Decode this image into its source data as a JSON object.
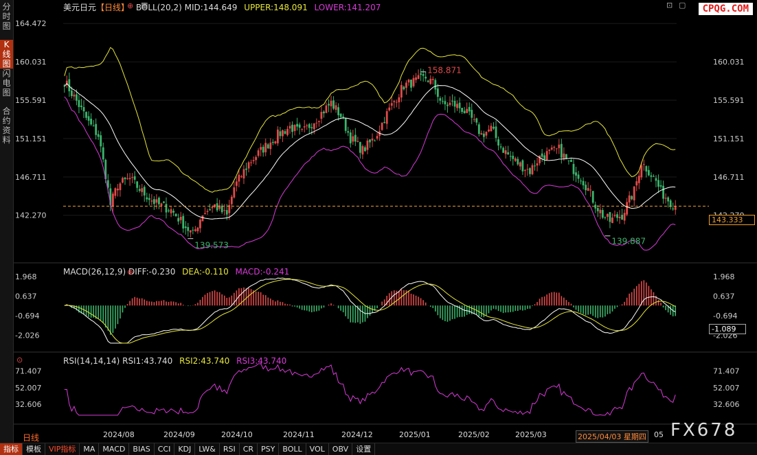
{
  "side_tabs": [
    "分时图",
    "K线图",
    "闪电图",
    "合约资料"
  ],
  "legend_main": {
    "symbol": "美元日元",
    "period": "【日线】",
    "boll": "BOLL(20,2) MID:144.649",
    "upper": "UPPER:148.091",
    "lower": "LOWER:141.207"
  },
  "legend_macd": {
    "name": "MACD(26,12,9) DIFF:-0.230",
    "dea": "DEA:-0.110",
    "macd": "MACD:-0.241"
  },
  "legend_rsi": {
    "name": "RSI(14,14,14) RSI1:43.740",
    "rsi2": "RSI2:43.740",
    "rsi3": "RSI3:43.740"
  },
  "logo": "CPQG.COM",
  "watermark": "FX678",
  "period_label": "日线",
  "current_price_tag": "143.333",
  "macd_tag": "-1.089",
  "date_box": "2025/04/03 星期四",
  "toolbar": [
    "指标",
    "模板",
    "VIP指标",
    "MA",
    "MACD",
    "BIAS",
    "CCI",
    "KDJ",
    "LW&",
    "RSI",
    "CR",
    "PSY",
    "BOLL",
    "VOL",
    "OBV",
    "设置"
  ],
  "colors": {
    "up": "#e24a4a",
    "down": "#3bb56c",
    "boll_mid": "#ffffff",
    "boll_upper": "#e8e83a",
    "boll_lower": "#d93ad9",
    "dea": "#e8e83a",
    "accent": "#ff6a2a"
  },
  "chart_data": [
    {
      "type": "candlestick",
      "title": "美元日元【日线】",
      "y_ticks": [
        "164.472",
        "160.031",
        "155.591",
        "151.151",
        "146.711",
        "142.270"
      ],
      "ylim": [
        137.8,
        166.0
      ],
      "x_tick_labels": [
        "2024/08",
        "2024/09",
        "2024/10",
        "2024/11",
        "2024/12",
        "2025/01",
        "2025/02",
        "2025/03",
        "2025/04"
      ],
      "annotations": {
        "high": "158.871",
        "low1": "139.573",
        "low2": "139.887"
      },
      "close_path": [
        [
          0,
          157.8
        ],
        [
          5,
          155.5
        ],
        [
          10,
          153.0
        ],
        [
          14,
          151.5
        ],
        [
          17,
          147.0
        ],
        [
          19,
          143.5
        ],
        [
          22,
          145.8
        ],
        [
          27,
          146.5
        ],
        [
          32,
          145.0
        ],
        [
          38,
          143.6
        ],
        [
          44,
          142.9
        ],
        [
          48,
          141.6
        ],
        [
          53,
          140.0
        ],
        [
          57,
          142.5
        ],
        [
          62,
          143.4
        ],
        [
          67,
          142.2
        ],
        [
          70,
          145.5
        ],
        [
          76,
          148.3
        ],
        [
          82,
          150.0
        ],
        [
          88,
          151.6
        ],
        [
          93,
          152.5
        ],
        [
          98,
          151.8
        ],
        [
          104,
          153.5
        ],
        [
          110,
          155.3
        ],
        [
          114,
          153.8
        ],
        [
          118,
          151.2
        ],
        [
          123,
          149.8
        ],
        [
          128,
          151.2
        ],
        [
          132,
          153.5
        ],
        [
          136,
          155.5
        ],
        [
          140,
          157.3
        ],
        [
          145,
          157.8
        ],
        [
          149,
          158.2
        ],
        [
          152,
          157.6
        ],
        [
          156,
          155.0
        ],
        [
          160,
          155.2
        ],
        [
          164,
          154.6
        ],
        [
          168,
          153.4
        ],
        [
          172,
          151.6
        ],
        [
          176,
          152.3
        ],
        [
          180,
          150.2
        ],
        [
          184,
          149.0
        ],
        [
          188,
          148.1
        ],
        [
          192,
          147.4
        ],
        [
          196,
          149.0
        ],
        [
          200,
          149.5
        ],
        [
          204,
          149.9
        ],
        [
          207,
          148.7
        ],
        [
          210,
          147.6
        ],
        [
          213,
          146.7
        ],
        [
          216,
          145.3
        ],
        [
          219,
          143.5
        ],
        [
          222,
          142.3
        ],
        [
          225,
          141.6
        ],
        [
          227,
          142.0
        ],
        [
          230,
          142.3
        ],
        [
          233,
          144.0
        ],
        [
          235,
          145.1
        ],
        [
          238,
          148.4
        ],
        [
          241,
          147.4
        ],
        [
          244,
          146.2
        ],
        [
          246,
          145.0
        ],
        [
          249,
          144.1
        ],
        [
          252,
          143.3
        ]
      ]
    },
    {
      "type": "macd",
      "title": "MACD(26,12,9)",
      "y_ticks": [
        "1.968",
        "0.637",
        "-0.694",
        "-2.026"
      ],
      "ylim": [
        -2.55,
        2.1
      ],
      "diff": -0.23,
      "dea": -0.11,
      "macd": -0.241
    },
    {
      "type": "rsi",
      "title": "RSI(14,14,14)",
      "y_ticks": [
        "71.407",
        "52.007",
        "32.606"
      ],
      "ylim": [
        20,
        80
      ],
      "rsi1": 43.74,
      "rsi2": 43.74,
      "rsi3": 43.74
    }
  ]
}
